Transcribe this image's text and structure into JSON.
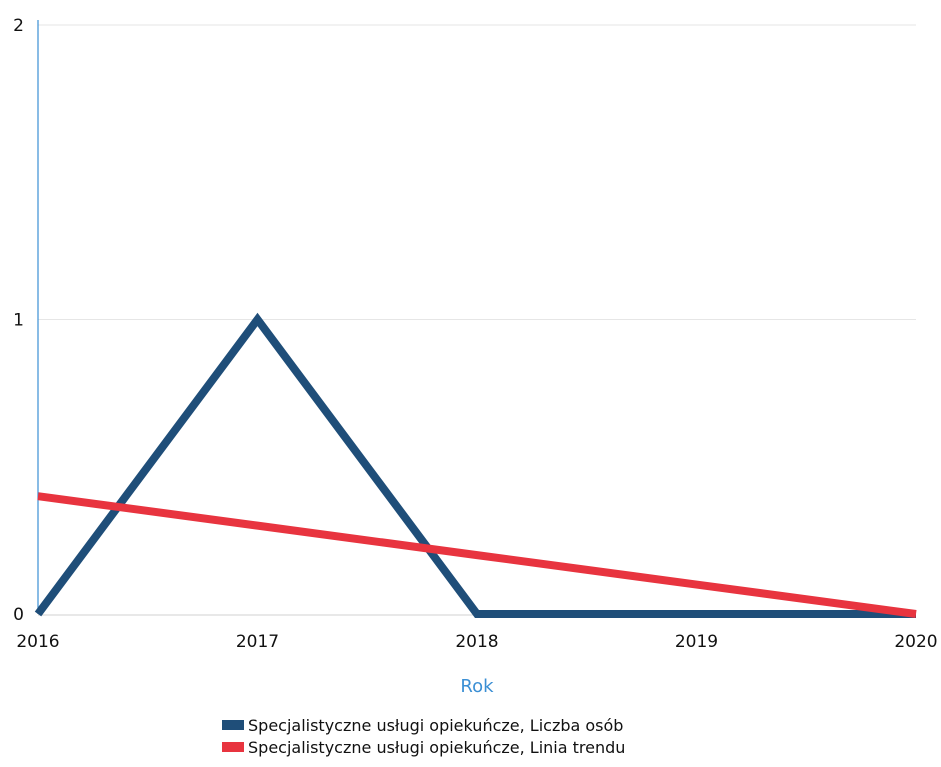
{
  "chart_data": {
    "type": "line",
    "xlabel": "Rok",
    "ylabel": "",
    "x": [
      2016,
      2017,
      2018,
      2019,
      2020
    ],
    "xlim": [
      2016,
      2020
    ],
    "ylim": [
      0,
      2
    ],
    "y_ticks": [
      0,
      1,
      2
    ],
    "grid": "horizontal",
    "legend_position": "bottom",
    "series": [
      {
        "name": "Specjalistyczne usługi opiekuńcze, Liczba osób",
        "values": [
          0,
          1,
          0,
          0,
          0
        ],
        "color": "#1f4e79"
      },
      {
        "name": "Specjalistyczne usługi opiekuńcze, Linia trendu",
        "values": [
          0.4,
          0.3,
          0.2,
          0.1,
          0
        ],
        "color": "#e8343f"
      }
    ],
    "axis_color": "#3b8fd4"
  }
}
